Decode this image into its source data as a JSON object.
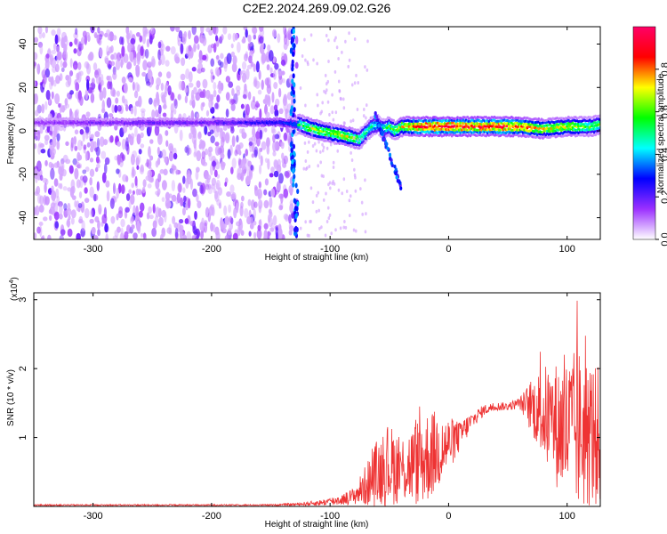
{
  "title": "C2E2.2024.269.09.02.G26",
  "chart_data": [
    {
      "type": "heatmap",
      "xlabel": "Height of straight line (km)",
      "ylabel": "Frequency (Hz)",
      "xlim": [
        -350,
        128
      ],
      "ylim": [
        -50,
        48
      ],
      "x_ticks": [
        "-300",
        "-200",
        "-100",
        "0",
        "100"
      ],
      "x_tick_values": [
        -300,
        -200,
        -100,
        0,
        100
      ],
      "y_ticks": [
        "-40",
        "-20",
        "0",
        "20",
        "40"
      ],
      "y_tick_values": [
        -40,
        -20,
        0,
        20,
        40
      ],
      "colorbar": {
        "label": "Normalized spectral amplitude",
        "range": [
          0,
          1
        ],
        "ticks": [
          "0.0",
          "0.2",
          "0.4",
          "0.6",
          "0.8"
        ],
        "tick_values": [
          0.0,
          0.2,
          0.4,
          0.6,
          0.8
        ],
        "colors": [
          "#ffffff",
          "#9b30ff",
          "#0000ff",
          "#00ffff",
          "#00ff00",
          "#ffff00",
          "#ff0000",
          "#ff0066"
        ]
      },
      "ridge": {
        "x": [
          -350,
          -250,
          -200,
          -140,
          -125,
          -115,
          -100,
          -90,
          -75,
          -65,
          -60,
          -55,
          -50,
          -45,
          -40,
          -30,
          -20,
          0,
          20,
          40,
          60,
          80,
          100,
          120,
          128
        ],
        "freq": [
          4,
          4,
          4,
          4,
          3,
          1,
          -1,
          -2,
          -4,
          2,
          3,
          1,
          2,
          0,
          2,
          2,
          2,
          2,
          2,
          2,
          2,
          1,
          2,
          2,
          3
        ],
        "amplitude": [
          0.15,
          0.2,
          0.2,
          0.3,
          0.55,
          0.7,
          0.65,
          0.75,
          0.6,
          0.5,
          0.45,
          0.5,
          0.6,
          0.6,
          0.7,
          0.85,
          0.95,
          0.95,
          0.9,
          0.95,
          0.85,
          0.75,
          0.7,
          0.6,
          0.6
        ]
      },
      "noise_region_x": [
        -350,
        -128
      ],
      "noise_region_freq": [
        -50,
        48
      ]
    },
    {
      "type": "line",
      "xlabel": "Height of straight line (km)",
      "ylabel": "SNR (10 * v/v)",
      "y_scale_label": "(x10",
      "y_scale_exp": "4",
      "y_scale_close": ")",
      "xlim": [
        -350,
        128
      ],
      "ylim": [
        0,
        3.1
      ],
      "x_ticks": [
        "-300",
        "-200",
        "-100",
        "0",
        "100"
      ],
      "x_tick_values": [
        -300,
        -200,
        -100,
        0,
        100
      ],
      "y_ticks": [
        "1",
        "2",
        "3"
      ],
      "y_tick_values": [
        1,
        2,
        3
      ],
      "color": "#ee3333",
      "series": [
        {
          "x": [
            -350,
            -300,
            -250,
            -200,
            -150,
            -130,
            -110,
            -100,
            -90,
            -80,
            -70,
            -60,
            -50,
            -40,
            -30,
            -20,
            -10,
            0,
            10,
            20,
            30,
            40,
            50,
            60,
            70,
            80,
            90,
            100,
            110,
            120,
            128
          ],
          "mean": [
            0.02,
            0.02,
            0.02,
            0.02,
            0.02,
            0.03,
            0.05,
            0.07,
            0.1,
            0.15,
            0.3,
            0.5,
            0.6,
            0.55,
            0.6,
            0.7,
            0.8,
            0.9,
            1.05,
            1.25,
            1.4,
            1.45,
            1.45,
            1.5,
            1.45,
            1.35,
            1.2,
            1.1,
            1.1,
            1.05,
            1.0
          ],
          "spread": [
            0.01,
            0.01,
            0.01,
            0.01,
            0.01,
            0.02,
            0.04,
            0.06,
            0.08,
            0.12,
            0.3,
            0.5,
            0.6,
            0.5,
            0.6,
            0.7,
            0.6,
            0.4,
            0.25,
            0.12,
            0.08,
            0.06,
            0.06,
            0.08,
            0.4,
            0.7,
            0.9,
            1.1,
            1.2,
            1.1,
            1.0
          ],
          "peak": [
            0.03,
            0.03,
            0.03,
            0.03,
            0.03,
            0.05,
            0.1,
            0.15,
            0.2,
            0.3,
            0.7,
            1.0,
            1.2,
            1.0,
            1.2,
            1.7,
            1.5,
            1.3,
            1.2,
            1.35,
            1.5,
            1.55,
            1.55,
            1.7,
            1.9,
            2.4,
            2.6,
            2.9,
            3.1,
            2.6,
            2.2
          ]
        }
      ]
    }
  ]
}
